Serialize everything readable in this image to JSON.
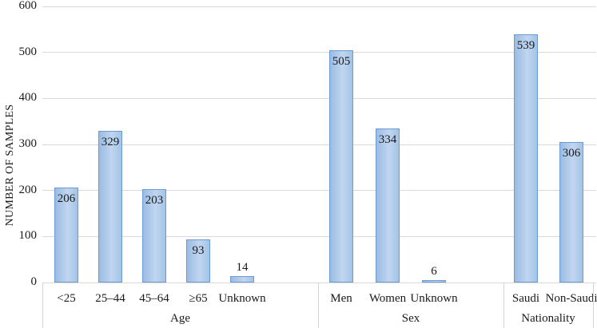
{
  "chart_data": {
    "type": "bar",
    "title": "",
    "ylabel": "NUMBER OF SAMPLES",
    "xlabel": "",
    "ylim": [
      0,
      600
    ],
    "yticks": [
      0,
      100,
      200,
      300,
      400,
      500,
      600
    ],
    "grid": "horizontal-only",
    "legend": "none",
    "bar_style": {
      "fill": "#abc8e9",
      "border": "#6d9ad2",
      "gridline_color": "#d9d9d9",
      "axis_box_border_color": "#d4d4d4",
      "text_color": "#1a1a1a"
    },
    "groups": [
      {
        "label": "Age",
        "categories": [
          "<25",
          "25–44",
          "45–64",
          "≥65",
          "Unknown"
        ],
        "values": [
          206,
          329,
          203,
          93,
          14
        ]
      },
      {
        "label": "Sex",
        "categories": [
          "Men",
          "Women",
          "Unknown"
        ],
        "values": [
          505,
          334,
          6
        ]
      },
      {
        "label": "Nationality",
        "categories": [
          "Saudi",
          "Non-Saudi"
        ],
        "values": [
          539,
          306
        ]
      }
    ]
  }
}
